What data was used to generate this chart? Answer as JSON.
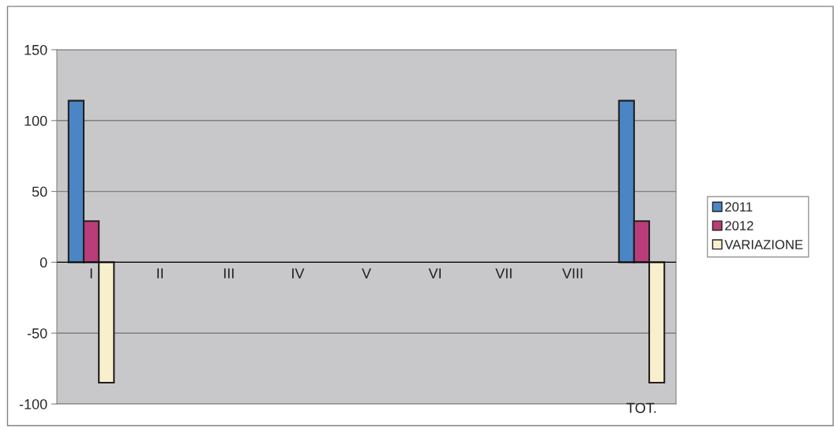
{
  "chart_data": {
    "type": "bar",
    "categories": [
      "I",
      "II",
      "III",
      "IV",
      "V",
      "VI",
      "VII",
      "VIII",
      "TOT."
    ],
    "series": [
      {
        "name": "2011",
        "color": "#4a86c5",
        "values": [
          114,
          null,
          null,
          null,
          null,
          null,
          null,
          null,
          114
        ]
      },
      {
        "name": "2012",
        "color": "#b93d78",
        "values": [
          29,
          null,
          null,
          null,
          null,
          null,
          null,
          null,
          29
        ]
      },
      {
        "name": "VARIAZIONE",
        "color": "#f8f0cc",
        "values": [
          -85,
          null,
          null,
          null,
          null,
          null,
          null,
          null,
          -85
        ]
      }
    ],
    "ylim": [
      -100,
      150
    ],
    "yticks": [
      -100,
      -50,
      0,
      50,
      100,
      150
    ],
    "grid": "y",
    "legend": "right"
  }
}
